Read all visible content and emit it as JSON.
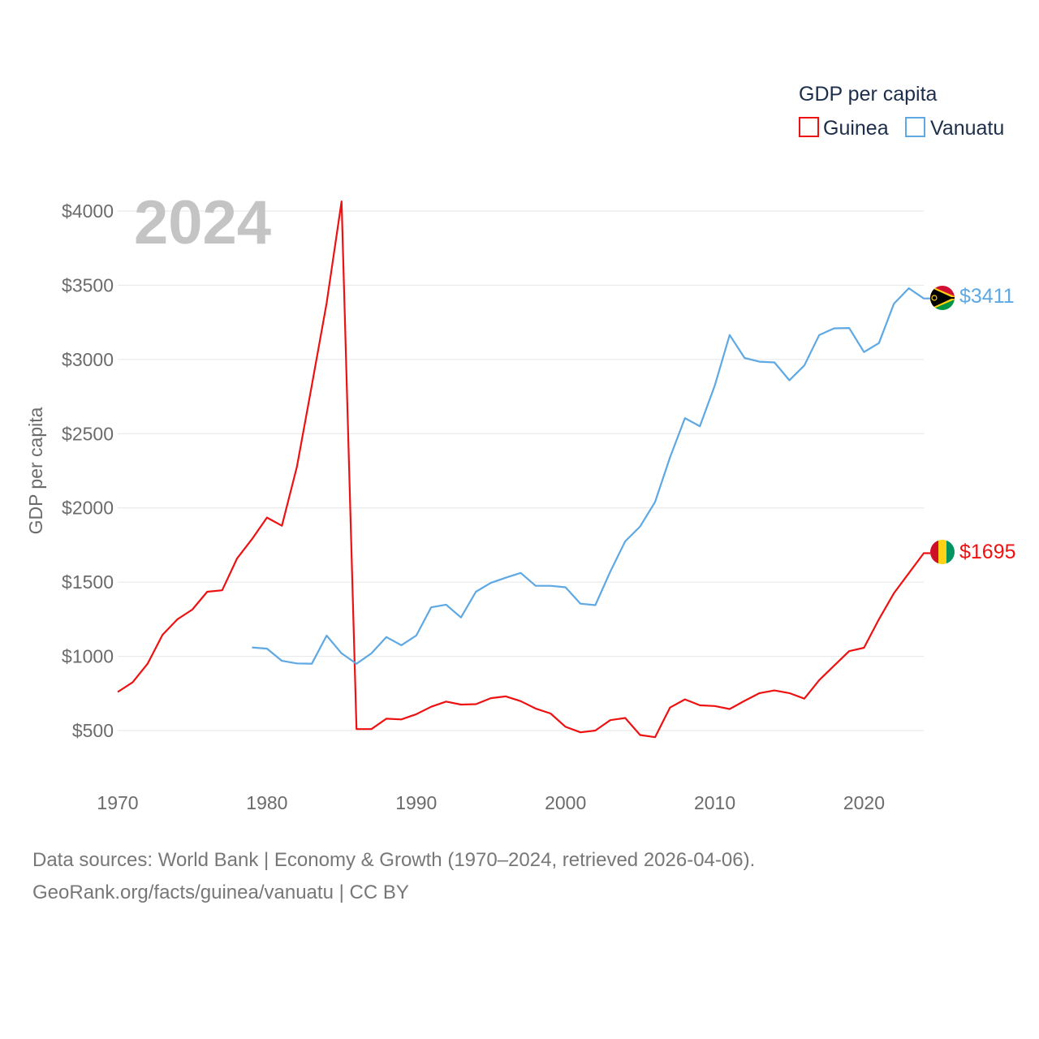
{
  "chart_data": {
    "type": "line",
    "title": "GDP per capita",
    "ylabel": "GDP per capita",
    "xlabel": "",
    "year_label": "2024",
    "xlim": [
      1970,
      2024
    ],
    "ylim": [
      300,
      4200
    ],
    "x_ticks": [
      1970,
      1980,
      1990,
      2000,
      2010,
      2020
    ],
    "y_ticks": [
      {
        "value": 500,
        "label": "$500"
      },
      {
        "value": 1000,
        "label": "$1000"
      },
      {
        "value": 1500,
        "label": "$1500"
      },
      {
        "value": 2000,
        "label": "$2000"
      },
      {
        "value": 2500,
        "label": "$2500"
      },
      {
        "value": 3000,
        "label": "$3000"
      },
      {
        "value": 3500,
        "label": "$3500"
      },
      {
        "value": 4000,
        "label": "$4000"
      }
    ],
    "legend": {
      "title": "GDP per capita",
      "position": "top-right"
    },
    "series": [
      {
        "name": "Guinea",
        "color": "#ee1111",
        "end_label": "$1695",
        "flag": "guinea-flag",
        "x": [
          1970,
          1971,
          1972,
          1973,
          1974,
          1975,
          1976,
          1977,
          1978,
          1979,
          1980,
          1981,
          1982,
          1983,
          1984,
          1985,
          1986,
          1987,
          1988,
          1989,
          1990,
          1991,
          1992,
          1993,
          1994,
          1995,
          1996,
          1997,
          1998,
          1999,
          2000,
          2001,
          2002,
          2003,
          2004,
          2005,
          2006,
          2007,
          2008,
          2009,
          2010,
          2011,
          2012,
          2013,
          2014,
          2015,
          2016,
          2017,
          2018,
          2019,
          2020,
          2021,
          2022,
          2023,
          2024
        ],
        "values": [
          760,
          825,
          950,
          1145,
          1250,
          1315,
          1435,
          1445,
          1660,
          1790,
          1935,
          1880,
          2275,
          2825,
          3380,
          4065,
          510,
          510,
          580,
          575,
          610,
          660,
          695,
          675,
          678,
          718,
          730,
          698,
          648,
          615,
          525,
          488,
          500,
          570,
          585,
          470,
          455,
          655,
          710,
          670,
          665,
          645,
          700,
          752,
          770,
          752,
          715,
          840,
          938,
          1035,
          1058,
          1250,
          1425,
          1560,
          1695
        ]
      },
      {
        "name": "Vanuatu",
        "color": "#5ea8e3",
        "end_label": "$3411",
        "flag": "vanuatu-flag",
        "x": [
          1979,
          1980,
          1981,
          1982,
          1983,
          1984,
          1985,
          1986,
          1987,
          1988,
          1989,
          1990,
          1991,
          1992,
          1993,
          1994,
          1995,
          1996,
          1997,
          1998,
          1999,
          2000,
          2001,
          2002,
          2003,
          2004,
          2005,
          2006,
          2007,
          2008,
          2009,
          2010,
          2011,
          2012,
          2013,
          2014,
          2015,
          2016,
          2017,
          2018,
          2019,
          2020,
          2021,
          2022,
          2023,
          2024
        ],
        "values": [
          1060,
          1052,
          970,
          952,
          950,
          1140,
          1020,
          950,
          1020,
          1130,
          1075,
          1140,
          1330,
          1348,
          1262,
          1435,
          1495,
          1530,
          1562,
          1475,
          1475,
          1465,
          1355,
          1345,
          1570,
          1775,
          1875,
          2040,
          2340,
          2605,
          2550,
          2825,
          3165,
          3010,
          2985,
          2980,
          2860,
          2960,
          3165,
          3210,
          3212,
          3050,
          3110,
          3375,
          3480,
          3411
        ]
      }
    ]
  },
  "source_line1": "Data sources: World Bank | Economy & Growth (1970–2024, retrieved 2026-04-06).",
  "source_line2": "GeoRank.org/facts/guinea/vanuatu | CC BY"
}
